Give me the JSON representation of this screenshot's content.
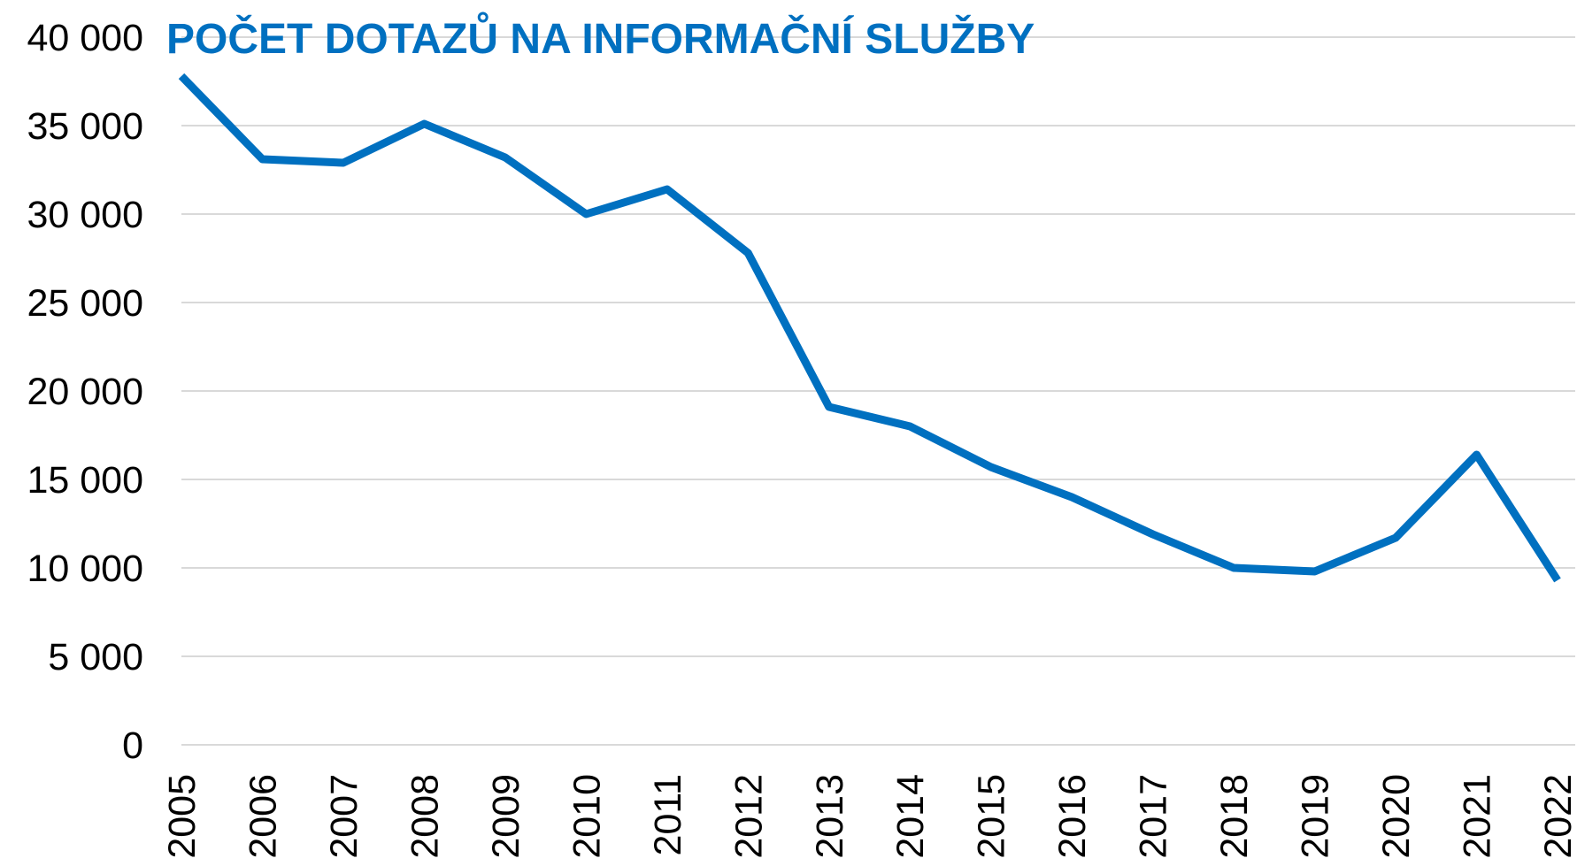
{
  "chart_data": {
    "type": "line",
    "title": "POČET DOTAZŮ NA INFORMAČNÍ SLUŽBY",
    "categories": [
      "2005",
      "2006",
      "2007",
      "2008",
      "2009",
      "2010",
      "2011",
      "2012",
      "2013",
      "2014",
      "2015",
      "2016",
      "2017",
      "2018",
      "2019",
      "2020",
      "2021",
      "2022"
    ],
    "series": [
      {
        "name": "Počet dotazů",
        "color": "#0070c0",
        "values": [
          37800,
          33100,
          32900,
          35100,
          33200,
          30000,
          31400,
          27800,
          19100,
          18000,
          15700,
          14000,
          11900,
          10000,
          9800,
          11700,
          16400,
          9300
        ]
      }
    ],
    "ylim": [
      0,
      40000
    ],
    "yticks": [
      0,
      {
        "value": 5000,
        "label": "5 000"
      },
      {
        "value": 10000,
        "label": "10 000"
      },
      {
        "value": 15000,
        "label": "15 000"
      },
      {
        "value": 20000,
        "label": "20 000"
      },
      {
        "value": 25000,
        "label": "25 000"
      },
      {
        "value": 30000,
        "label": "30 000"
      },
      {
        "value": 35000,
        "label": "35 000"
      },
      {
        "value": 40000,
        "label": "40 000"
      }
    ],
    "grid": true
  }
}
